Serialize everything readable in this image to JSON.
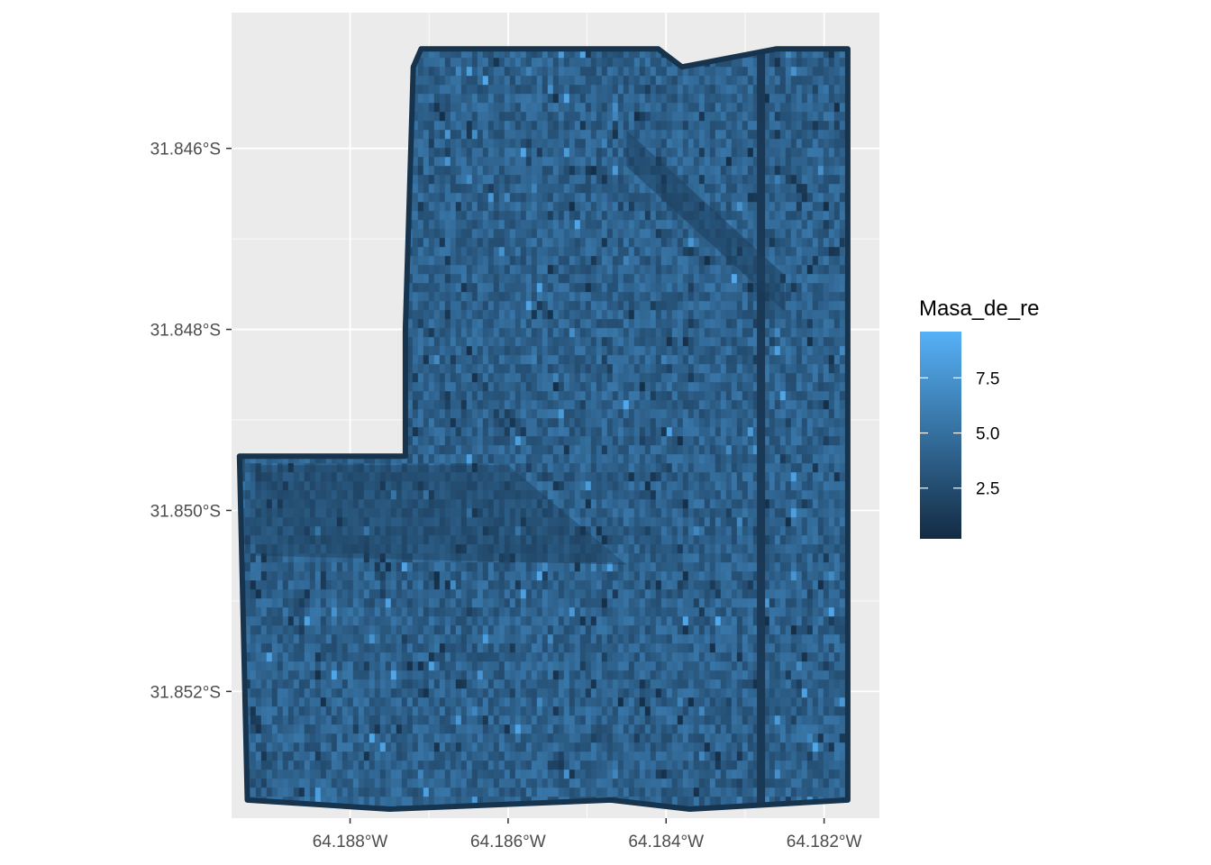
{
  "chart_data": {
    "type": "heatmap",
    "title": "",
    "xlabel": "",
    "ylabel": "",
    "x_ticks": [
      "64.188°W",
      "64.186°W",
      "64.184°W",
      "64.182°W"
    ],
    "x_tick_values": [
      -64.188,
      -64.186,
      -64.184,
      -64.182
    ],
    "y_ticks": [
      "31.846°S",
      "31.848°S",
      "31.850°S",
      "31.852°S"
    ],
    "y_tick_values": [
      -31.846,
      -31.848,
      -31.85,
      -31.852
    ],
    "xlim": [
      -64.1895,
      -64.1813
    ],
    "ylim": [
      -31.8534,
      -31.8445
    ],
    "grid": true,
    "legend": {
      "title": "Masa_de_re",
      "position": "right",
      "ticks": [
        "2.5",
        "5.0",
        "7.5"
      ],
      "tick_values": [
        2.5,
        5.0,
        7.5
      ],
      "range": [
        0.2,
        9.6
      ],
      "low_color": "#132b43",
      "high_color": "#56b1f7"
    },
    "field_polygon_lonlat": [
      [
        -64.1871,
        -31.8449
      ],
      [
        -64.1841,
        -31.8449
      ],
      [
        -64.1838,
        -31.8451
      ],
      [
        -64.1826,
        -31.8449
      ],
      [
        -64.1817,
        -31.8449
      ],
      [
        -64.1817,
        -31.8532
      ],
      [
        -64.1837,
        -31.8533
      ],
      [
        -64.1847,
        -31.8532
      ],
      [
        -64.1875,
        -31.8533
      ],
      [
        -64.1893,
        -31.8532
      ],
      [
        -64.1894,
        -31.8494
      ],
      [
        -64.1873,
        -31.8494
      ],
      [
        -64.1873,
        -31.848
      ],
      [
        -64.1872,
        -31.8451
      ]
    ],
    "dominant_value_range": [
      2.5,
      5.5
    ]
  },
  "colors": {
    "panel_bg": "#ebebeb",
    "grid_major": "#ffffff",
    "field_base": "#2c5a85"
  }
}
